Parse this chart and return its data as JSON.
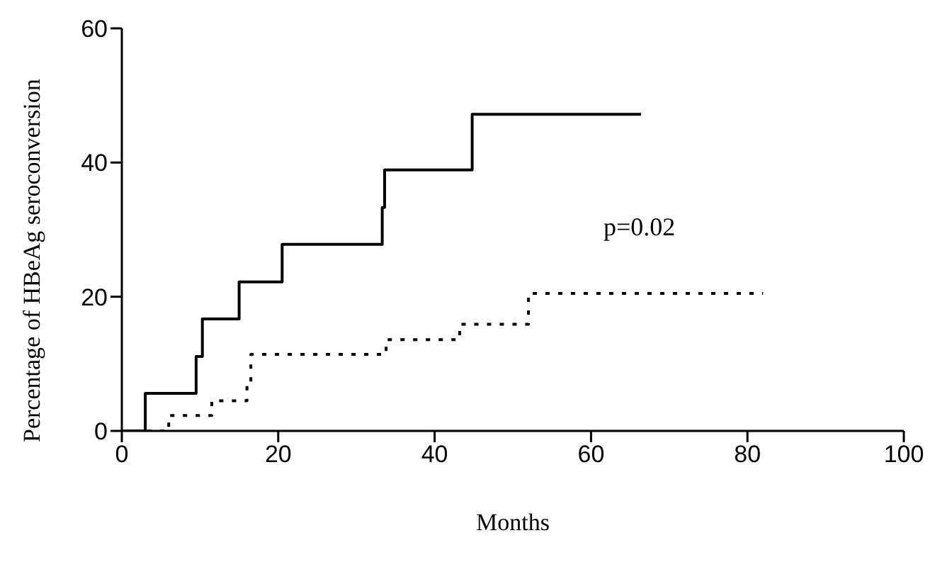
{
  "chart_data": {
    "type": "step",
    "xlabel": "Months",
    "ylabel": "Percentage of HBeAg seroconversion",
    "annotations": [
      "p=0.02"
    ],
    "xlim": [
      0,
      100
    ],
    "xticks": [
      0,
      20,
      40,
      60,
      80,
      100
    ],
    "ylim": [
      0,
      60
    ],
    "yticks": [
      0,
      20,
      40,
      60
    ],
    "grid": false,
    "legend": false,
    "marker": "none",
    "series": [
      {
        "color": "#000000",
        "line_style": "solid",
        "x": [
          0,
          3,
          9.5,
          10.3,
          15,
          20.5,
          33.3,
          33.6,
          44.8,
          66.4
        ],
        "values": [
          0,
          5.6,
          11.1,
          16.7,
          22.2,
          27.8,
          33.3,
          38.9,
          47.2,
          47.2
        ]
      },
      {
        "color": "#000000",
        "line_style": "dotted",
        "x": [
          0,
          6,
          11.5,
          16,
          16.5,
          33.8,
          43.2,
          52,
          82
        ],
        "values": [
          0,
          2.3,
          4.5,
          6.8,
          11.4,
          13.6,
          15.9,
          20.5,
          20.5
        ]
      }
    ]
  }
}
